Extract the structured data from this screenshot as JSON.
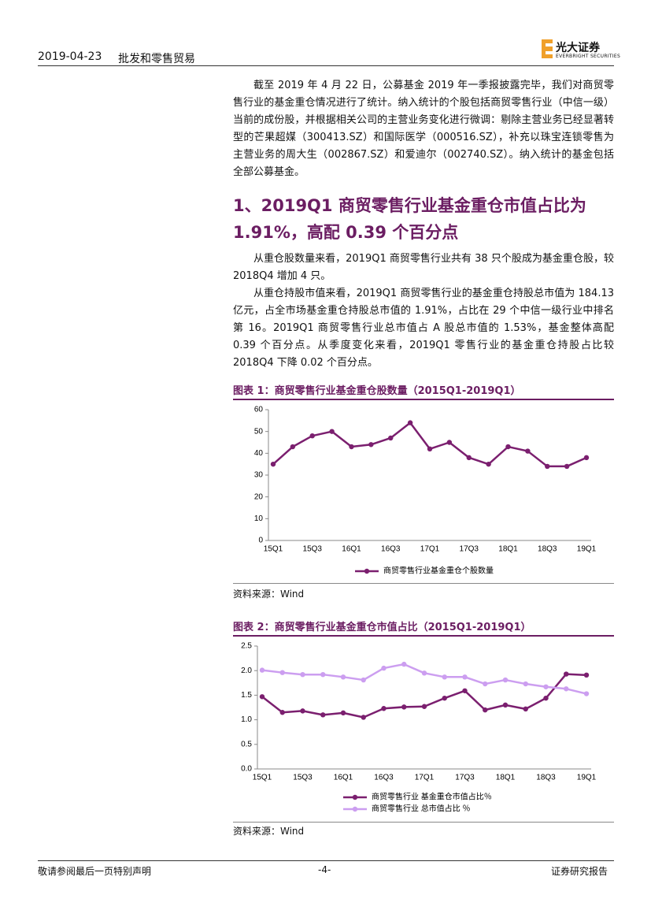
{
  "header": {
    "date": "2019-04-23",
    "industry": "批发和零售贸易",
    "logo": "光大证券",
    "logo_en": "EVERBRIGHT SECURITIES"
  },
  "intro": "截至 2019 年 4 月 22 日，公募基金 2019 年一季报披露完毕，我们对商贸零售行业的基金重仓情况进行了统计。纳入统计的个股包括商贸零售行业（中信一级）当前的成份股，并根据相关公司的主营业务变化进行微调：剔除主营业务已经显著转型的芒果超媒（300413.SZ）和国际医学（000516.SZ），补充以珠宝连锁零售为主营业务的周大生（002867.SZ）和爱迪尔（002740.SZ）。纳入统计的基金包括全部公募基金。",
  "heading": "1、2019Q1 商贸零售行业基金重仓市值占比为 1.91%，高配 0.39 个百分点",
  "paragraphs": [
    "从重仓股数量来看，2019Q1 商贸零售行业共有 38 只个股成为基金重仓股，较 2018Q4 增加 4 只。",
    "从重仓持股市值来看，2019Q1 商贸零售行业的基金重仓持股总市值为 184.13 亿元，占全市场基金重仓持股总市值的 1.91%，占比在 29 个中信一级行业中排名第 16。2019Q1 商贸零售行业总市值占 A 股总市值的 1.53%，基金整体高配 0.39 个百分点。从季度变化来看，2019Q1 零售行业的基金重仓持股占比较 2018Q4 下降 0.02 个百分点。"
  ],
  "chart_data": [
    {
      "type": "line",
      "title": "图表 1：商贸零售行业基金重仓股数量（2015Q1-2019Q1）",
      "source": "资料来源：Wind",
      "categories": [
        "15Q1",
        null,
        "15Q3",
        null,
        "16Q1",
        null,
        "16Q3",
        null,
        "17Q1",
        null,
        "17Q3",
        null,
        "18Q1",
        null,
        "18Q3",
        null,
        "19Q1"
      ],
      "series": [
        {
          "name": "商贸零售行业基金重仓个股数量",
          "color": "#7b1f6f",
          "values": [
            35,
            43,
            48,
            50,
            43,
            44,
            47,
            54,
            42,
            45,
            38,
            35,
            43,
            41,
            34,
            34,
            38
          ]
        }
      ],
      "ylim": [
        0,
        60
      ],
      "yticks": [
        0,
        10,
        20,
        30,
        40,
        50,
        60
      ],
      "grid": false
    },
    {
      "type": "line",
      "title": "图表 2：商贸零售行业基金重仓市值占比（2015Q1-2019Q1）",
      "source": "资料来源：Wind",
      "categories": [
        "15Q1",
        null,
        "15Q3",
        null,
        "16Q1",
        null,
        "16Q3",
        null,
        "17Q1",
        null,
        "17Q3",
        null,
        "18Q1",
        null,
        "18Q3",
        null,
        "19Q1"
      ],
      "series": [
        {
          "name": "商贸零售行业 基金重仓市值占比％",
          "color": "#7b1f6f",
          "values": [
            1.47,
            1.15,
            1.18,
            1.1,
            1.14,
            1.05,
            1.23,
            1.26,
            1.27,
            1.44,
            1.59,
            1.2,
            1.3,
            1.22,
            1.44,
            1.93,
            1.91
          ]
        },
        {
          "name": "商贸零售行业 总市值占比 ％",
          "color": "#cc9ef0",
          "values": [
            2.01,
            1.96,
            1.92,
            1.92,
            1.87,
            1.81,
            2.05,
            2.13,
            1.95,
            1.87,
            1.87,
            1.73,
            1.81,
            1.73,
            1.67,
            1.63,
            1.53
          ]
        }
      ],
      "ylim": [
        0,
        2.5
      ],
      "yticks": [
        {
          "value": 0,
          "label": "0.0"
        },
        0.5,
        {
          "value": 1,
          "label": "1.0"
        },
        1.5,
        {
          "value": 2,
          "label": "2.0"
        },
        2.5
      ],
      "grid": false
    }
  ],
  "footer": {
    "left": "敬请参阅最后一页特别声明",
    "center": "-4-",
    "right": "证券研究报告"
  }
}
